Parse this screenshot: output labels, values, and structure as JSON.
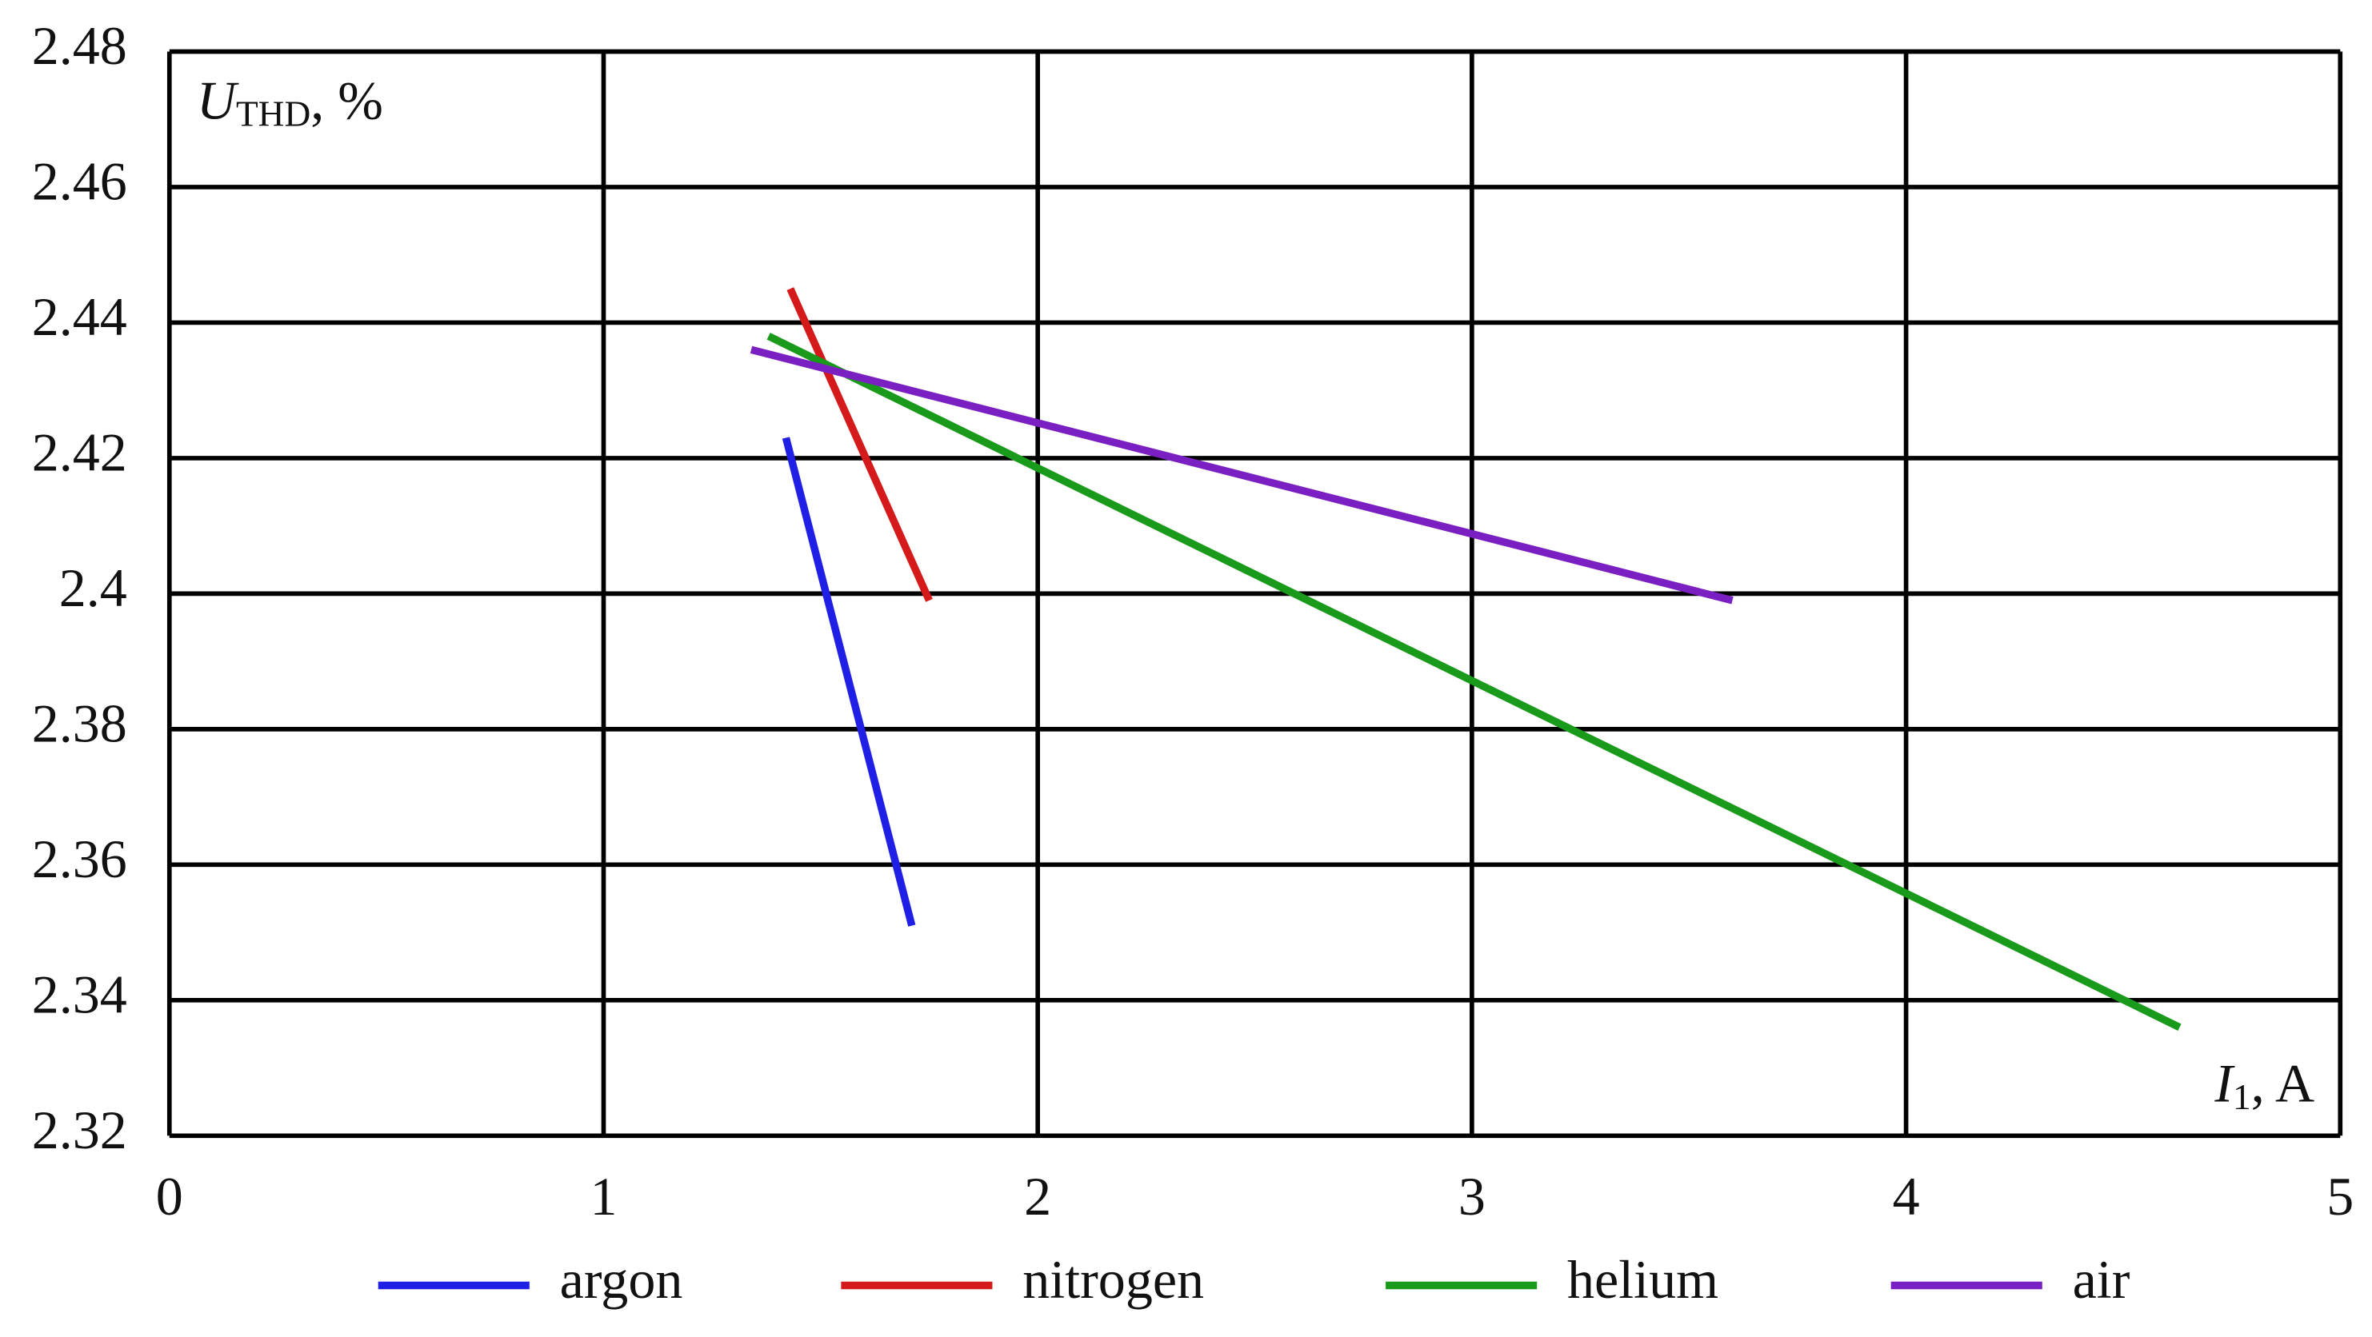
{
  "chart_data": {
    "type": "line",
    "ylabel": "U",
    "ylabel_sub": "THD",
    "ylabel_suffix": ", %",
    "xlabel": "I",
    "xlabel_sub": "1",
    "xlabel_suffix": ", A",
    "xlim": [
      0,
      5
    ],
    "xticks": [
      0,
      1,
      2,
      3,
      4,
      5
    ],
    "ylim": [
      2.32,
      2.48
    ],
    "yticks": [
      2.32,
      2.34,
      2.36,
      2.38,
      2.4,
      2.42,
      2.44,
      2.46,
      2.48
    ],
    "grid": true,
    "legend": "bottom",
    "series": [
      {
        "name": "argon",
        "color": "#1f1fe6",
        "x": [
          1.42,
          1.71
        ],
        "values": [
          2.423,
          2.351
        ]
      },
      {
        "name": "nitrogen",
        "color": "#d41a1a",
        "x": [
          1.43,
          1.75
        ],
        "values": [
          2.445,
          2.399
        ]
      },
      {
        "name": "helium",
        "color": "#1a9a1a",
        "x": [
          1.38,
          4.63
        ],
        "values": [
          2.438,
          2.336
        ]
      },
      {
        "name": "air",
        "color": "#7a1fc2",
        "x": [
          1.34,
          3.6
        ],
        "values": [
          2.436,
          2.399
        ]
      }
    ]
  }
}
